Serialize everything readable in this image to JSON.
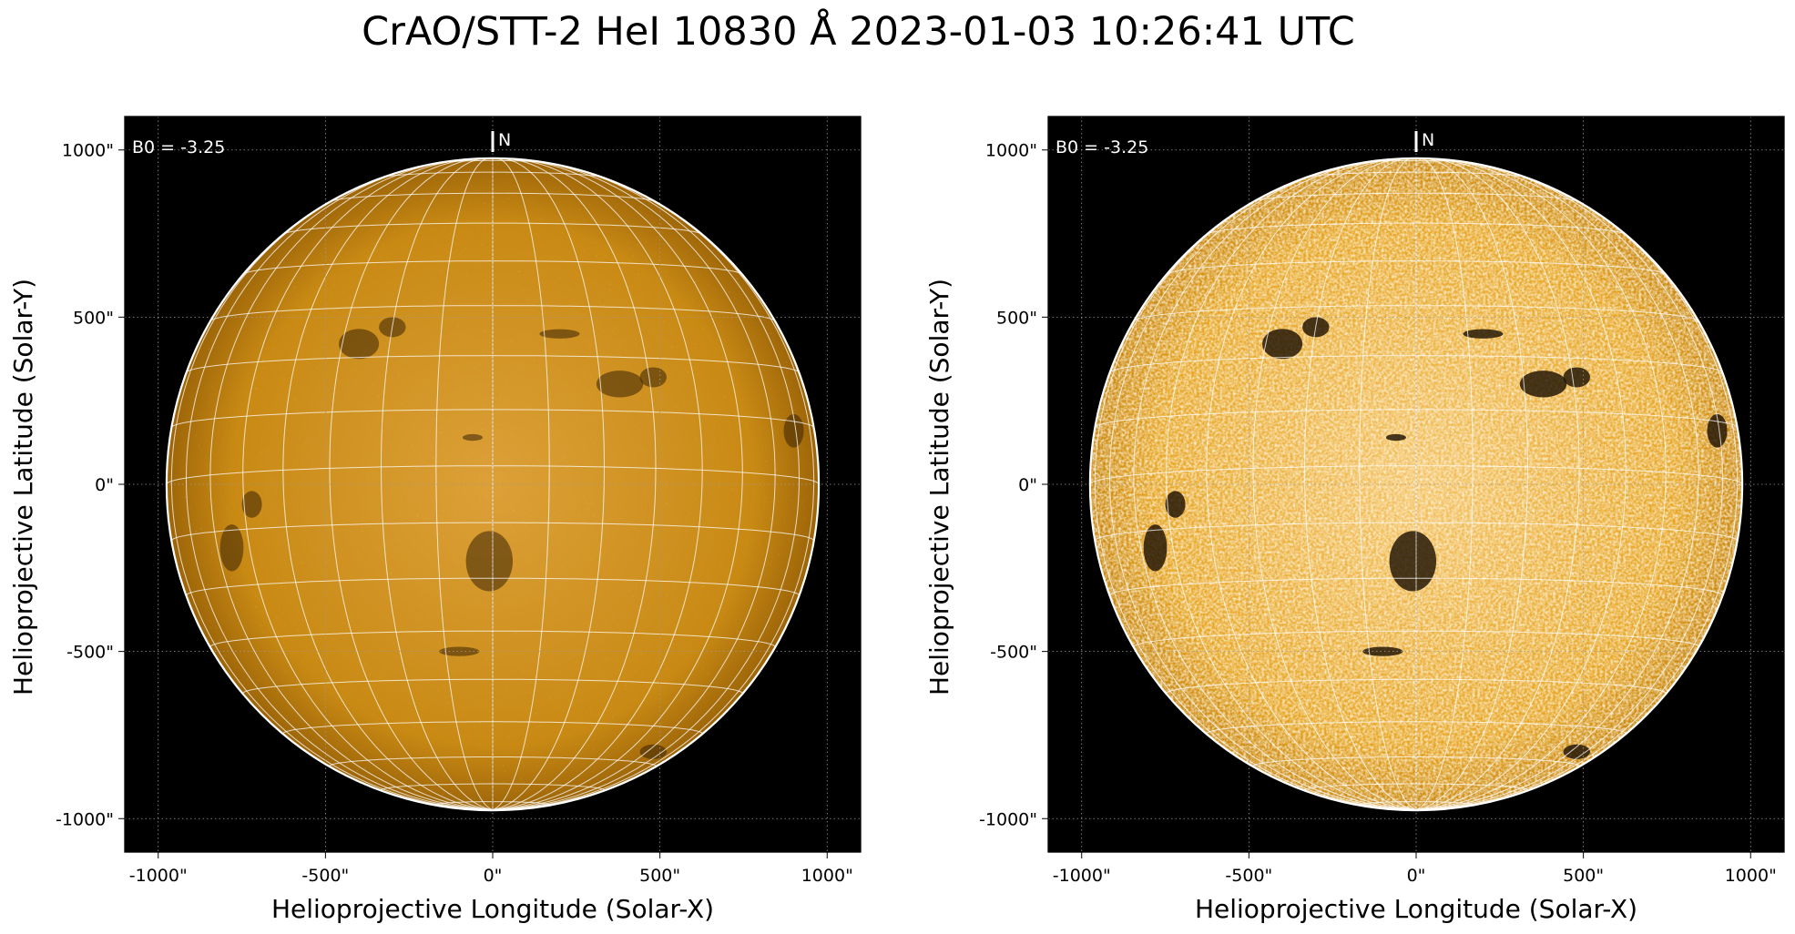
{
  "title": "CrAO/STT-2 HeI 10830 Å 2023-01-03 10:26:41 UTC",
  "colors": {
    "background": "#000000",
    "disk_base_left": "#c98a14",
    "disk_base_right": "#e7a524",
    "grid": "#ffffff",
    "limb": "#ffffff"
  },
  "panels": [
    {
      "id": "left",
      "b0_label": "B0 = -3.25",
      "north_label": "N",
      "xlabel": "Helioprojective Longitude (Solar-X)",
      "ylabel": "Helioprojective Latitude (Solar-Y)",
      "x_ticks": [
        "-1000\"",
        "-500\"",
        "0\"",
        "500\"",
        "1000\""
      ],
      "y_ticks": [
        "1000\"",
        "500\"",
        "0\"",
        "-500\"",
        "-1000\""
      ],
      "x_tick_values": [
        -1000,
        -500,
        0,
        500,
        1000
      ],
      "y_tick_values": [
        1000,
        500,
        0,
        -500,
        -1000
      ],
      "xlim": [
        -1100,
        1100
      ],
      "ylim": [
        -1100,
        1100
      ],
      "solar_radius_arcsec": 975,
      "b0_deg": -3.25,
      "contrast": "normal",
      "disk_color": "#c98a14"
    },
    {
      "id": "right",
      "b0_label": "B0 = -3.25",
      "north_label": "N",
      "xlabel": "Helioprojective Longitude (Solar-X)",
      "ylabel": "Helioprojective Latitude (Solar-Y)",
      "x_ticks": [
        "-1000\"",
        "-500\"",
        "0\"",
        "500\"",
        "1000\""
      ],
      "y_ticks": [
        "1000\"",
        "500\"",
        "0\"",
        "-500\"",
        "-1000\""
      ],
      "x_tick_values": [
        -1000,
        -500,
        0,
        500,
        1000
      ],
      "y_tick_values": [
        1000,
        500,
        0,
        -500,
        -1000
      ],
      "xlim": [
        -1100,
        1100
      ],
      "ylim": [
        -1100,
        1100
      ],
      "solar_radius_arcsec": 975,
      "b0_deg": -3.25,
      "contrast": "enhanced",
      "disk_color": "#e7a524"
    }
  ]
}
